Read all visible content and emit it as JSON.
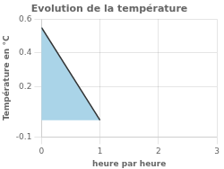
{
  "chart_data": {
    "type": "area",
    "title": "Evolution de la température",
    "xlabel": "heure par heure",
    "ylabel": "Température en °C",
    "series": [
      {
        "type": "area",
        "color": "#aad4e8",
        "x": [
          0,
          0,
          1,
          1
        ],
        "values": [
          0,
          0.55,
          0,
          0
        ]
      },
      {
        "type": "line",
        "color": "#333333",
        "x": [
          0,
          1
        ],
        "values": [
          0.55,
          0
        ]
      }
    ],
    "xlim": [
      0,
      3
    ],
    "ylim": [
      -0.1,
      0.6
    ],
    "xticks": [
      0,
      1,
      2,
      3
    ],
    "yticks": [
      -0.1,
      0.2,
      0.4,
      0.6
    ],
    "grid": true
  }
}
